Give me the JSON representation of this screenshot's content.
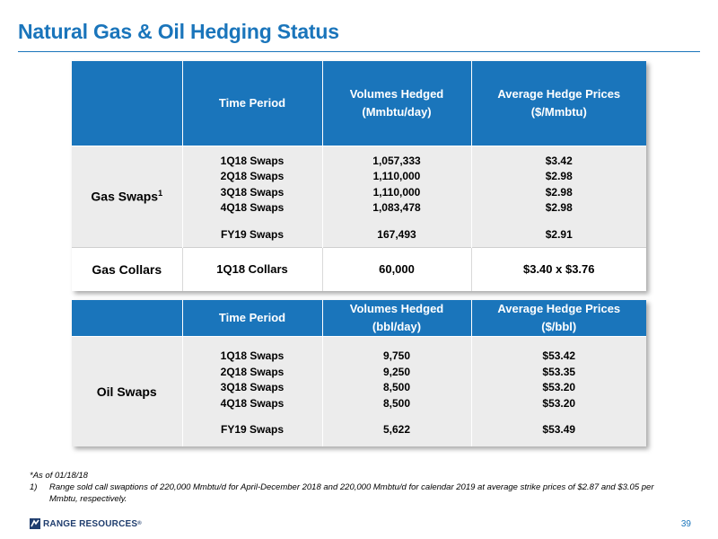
{
  "title": "Natural Gas & Oil Hedging Status",
  "gas_table": {
    "headers": {
      "time_period": "Time Period",
      "volumes_line1": "Volumes Hedged",
      "volumes_line2": "(Mmbtu/day)",
      "prices_line1": "Average Hedge Prices",
      "prices_line2": "($/Mmbtu)"
    },
    "swaps": {
      "label": "Gas Swaps",
      "label_sup": "1",
      "periods": [
        "1Q18 Swaps",
        "2Q18 Swaps",
        "3Q18 Swaps",
        "4Q18 Swaps"
      ],
      "volumes": [
        "1,057,333",
        "1,110,000",
        "1,110,000",
        "1,083,478"
      ],
      "prices": [
        "$3.42",
        "$2.98",
        "$2.98",
        "$2.98"
      ],
      "annual_period": "FY19 Swaps",
      "annual_volume": "167,493",
      "annual_price": "$2.91"
    },
    "collars": {
      "label": "Gas Collars",
      "period": "1Q18 Collars",
      "volume": "60,000",
      "price": "$3.40 x $3.76"
    }
  },
  "oil_table": {
    "headers": {
      "time_period": "Time Period",
      "volumes_line1": "Volumes Hedged",
      "volumes_line2": "(bbl/day)",
      "prices_line1": "Average Hedge Prices",
      "prices_line2": "($/bbl)"
    },
    "swaps": {
      "label": "Oil Swaps",
      "periods": [
        "1Q18 Swaps",
        "2Q18 Swaps",
        "3Q18 Swaps",
        "4Q18 Swaps"
      ],
      "volumes": [
        "9,750",
        "9,250",
        "8,500",
        "8,500"
      ],
      "prices": [
        "$53.42",
        "$53.35",
        "$53.20",
        "$53.20"
      ],
      "annual_period": "FY19 Swaps",
      "annual_volume": "5,622",
      "annual_price": "$53.49"
    }
  },
  "footnotes": {
    "as_of": "*As of 01/18/18",
    "note1_num": "1)",
    "note1_text": "Range sold call swaptions of 220,000 Mmbtu/d for April-December 2018 and 220,000 Mmbtu/d for calendar 2019 at average strike prices of $2.87 and $3.05 per Mmbtu, respectively."
  },
  "footer": {
    "logo_text": "RANGE RESOURCES",
    "logo_mark": "®",
    "page_number": "39"
  },
  "colors": {
    "accent_blue": "#1a75bb",
    "row_gray": "#ececec"
  }
}
